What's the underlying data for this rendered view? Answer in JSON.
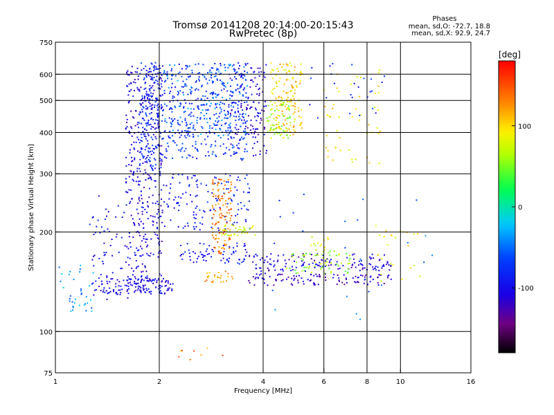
{
  "chart_data": {
    "type": "scatter",
    "title": "Tromsø 20141208 20:14:00-20:15:43",
    "subtitle": "RwPretec (8p)",
    "xlabel": "Frequency [MHz]",
    "ylabel": "Stationary phase Virtual Height [km]",
    "x_scale": "log",
    "y_scale": "log",
    "xlim": [
      1,
      16
    ],
    "ylim": [
      75,
      750
    ],
    "x_ticks": [
      "1",
      "2",
      "4",
      "6",
      "8",
      "10",
      "16"
    ],
    "x_tick_values": [
      1,
      2,
      4,
      6,
      8,
      10,
      16
    ],
    "y_ticks": [
      "750",
      "600",
      "500",
      "400",
      "300",
      "200",
      "100",
      "75"
    ],
    "y_tick_values": [
      750,
      600,
      500,
      400,
      300,
      200,
      100,
      75
    ],
    "x_gridlines": [
      2,
      4,
      6,
      8,
      10
    ],
    "y_gridlines": [
      100,
      200,
      300,
      400,
      500,
      600
    ],
    "grid": true,
    "stats_header": "Phases",
    "stats": [
      "mean, sd,O: -72.7, 18.8",
      "mean, sd,X:  92.9, 24.7"
    ],
    "colorbar": {
      "label": "[deg]",
      "range": [
        -180,
        180
      ],
      "ticks": [
        "100",
        "0",
        "-100"
      ],
      "tick_values": [
        100,
        0,
        -100
      ]
    },
    "clusters": [
      {
        "x": [
          1.6,
          2.05
        ],
        "y": [
          130,
          650
        ],
        "phase": -105,
        "n": 420
      },
      {
        "x": [
          1.75,
          2.05
        ],
        "y": [
          300,
          650
        ],
        "phase": -80,
        "n": 180
      },
      {
        "x": [
          2.05,
          3.6
        ],
        "y": [
          330,
          650
        ],
        "phase": -78,
        "n": 360
      },
      {
        "x": [
          2.05,
          3.6
        ],
        "y": [
          380,
          650
        ],
        "phase": -50,
        "n": 160
      },
      {
        "x": [
          3.2,
          4.1
        ],
        "y": [
          340,
          650
        ],
        "phase": -110,
        "n": 140
      },
      {
        "x": [
          1.25,
          1.65
        ],
        "y": [
          125,
          260
        ],
        "phase": -95,
        "n": 70
      },
      {
        "x": [
          1.0,
          1.3
        ],
        "y": [
          115,
          160
        ],
        "phase": -40,
        "n": 35
      },
      {
        "x": [
          1.35,
          2.2
        ],
        "y": [
          130,
          145
        ],
        "phase": -100,
        "n": 100
      },
      {
        "x": [
          2.05,
          3.7
        ],
        "y": [
          200,
          300
        ],
        "phase": -85,
        "n": 140
      },
      {
        "x": [
          2.3,
          3.6
        ],
        "y": [
          160,
          185
        ],
        "phase": -95,
        "n": 70
      },
      {
        "x": [
          4.2,
          5.2
        ],
        "y": [
          380,
          650
        ],
        "phase": 105,
        "n": 150
      },
      {
        "x": [
          4.1,
          4.8
        ],
        "y": [
          380,
          500
        ],
        "phase": 60,
        "n": 60
      },
      {
        "x": [
          2.85,
          3.25
        ],
        "y": [
          170,
          290
        ],
        "phase": 135,
        "n": 110
      },
      {
        "x": [
          3.0,
          3.8
        ],
        "y": [
          195,
          210
        ],
        "phase": 80,
        "n": 40
      },
      {
        "x": [
          3.6,
          9.4
        ],
        "y": [
          152,
          172
        ],
        "phase": -110,
        "n": 140
      },
      {
        "x": [
          3.6,
          9.4
        ],
        "y": [
          138,
          150
        ],
        "phase": -115,
        "n": 110
      },
      {
        "x": [
          4.6,
          7.2
        ],
        "y": [
          150,
          175
        ],
        "phase": 55,
        "n": 60
      },
      {
        "x": [
          2.7,
          3.3
        ],
        "y": [
          140,
          152
        ],
        "phase": 120,
        "n": 25
      },
      {
        "x": [
          5.5,
          6.2
        ],
        "y": [
          160,
          195
        ],
        "phase": 75,
        "n": 20
      },
      {
        "x": [
          6.0,
          8.8
        ],
        "y": [
          320,
          640
        ],
        "phase": 95,
        "n": 50
      },
      {
        "x": [
          5.4,
          9.0
        ],
        "y": [
          440,
          650
        ],
        "phase": -75,
        "n": 25
      },
      {
        "x": [
          8.2,
          11.5
        ],
        "y": [
          140,
          210
        ],
        "phase": 90,
        "n": 25
      },
      {
        "x": [
          2.2,
          3.1
        ],
        "y": [
          82,
          90
        ],
        "phase": 130,
        "n": 8
      },
      {
        "x": [
          4.0,
          12.5
        ],
        "y": [
          100,
          300
        ],
        "phase": -60,
        "n": 25
      }
    ]
  }
}
